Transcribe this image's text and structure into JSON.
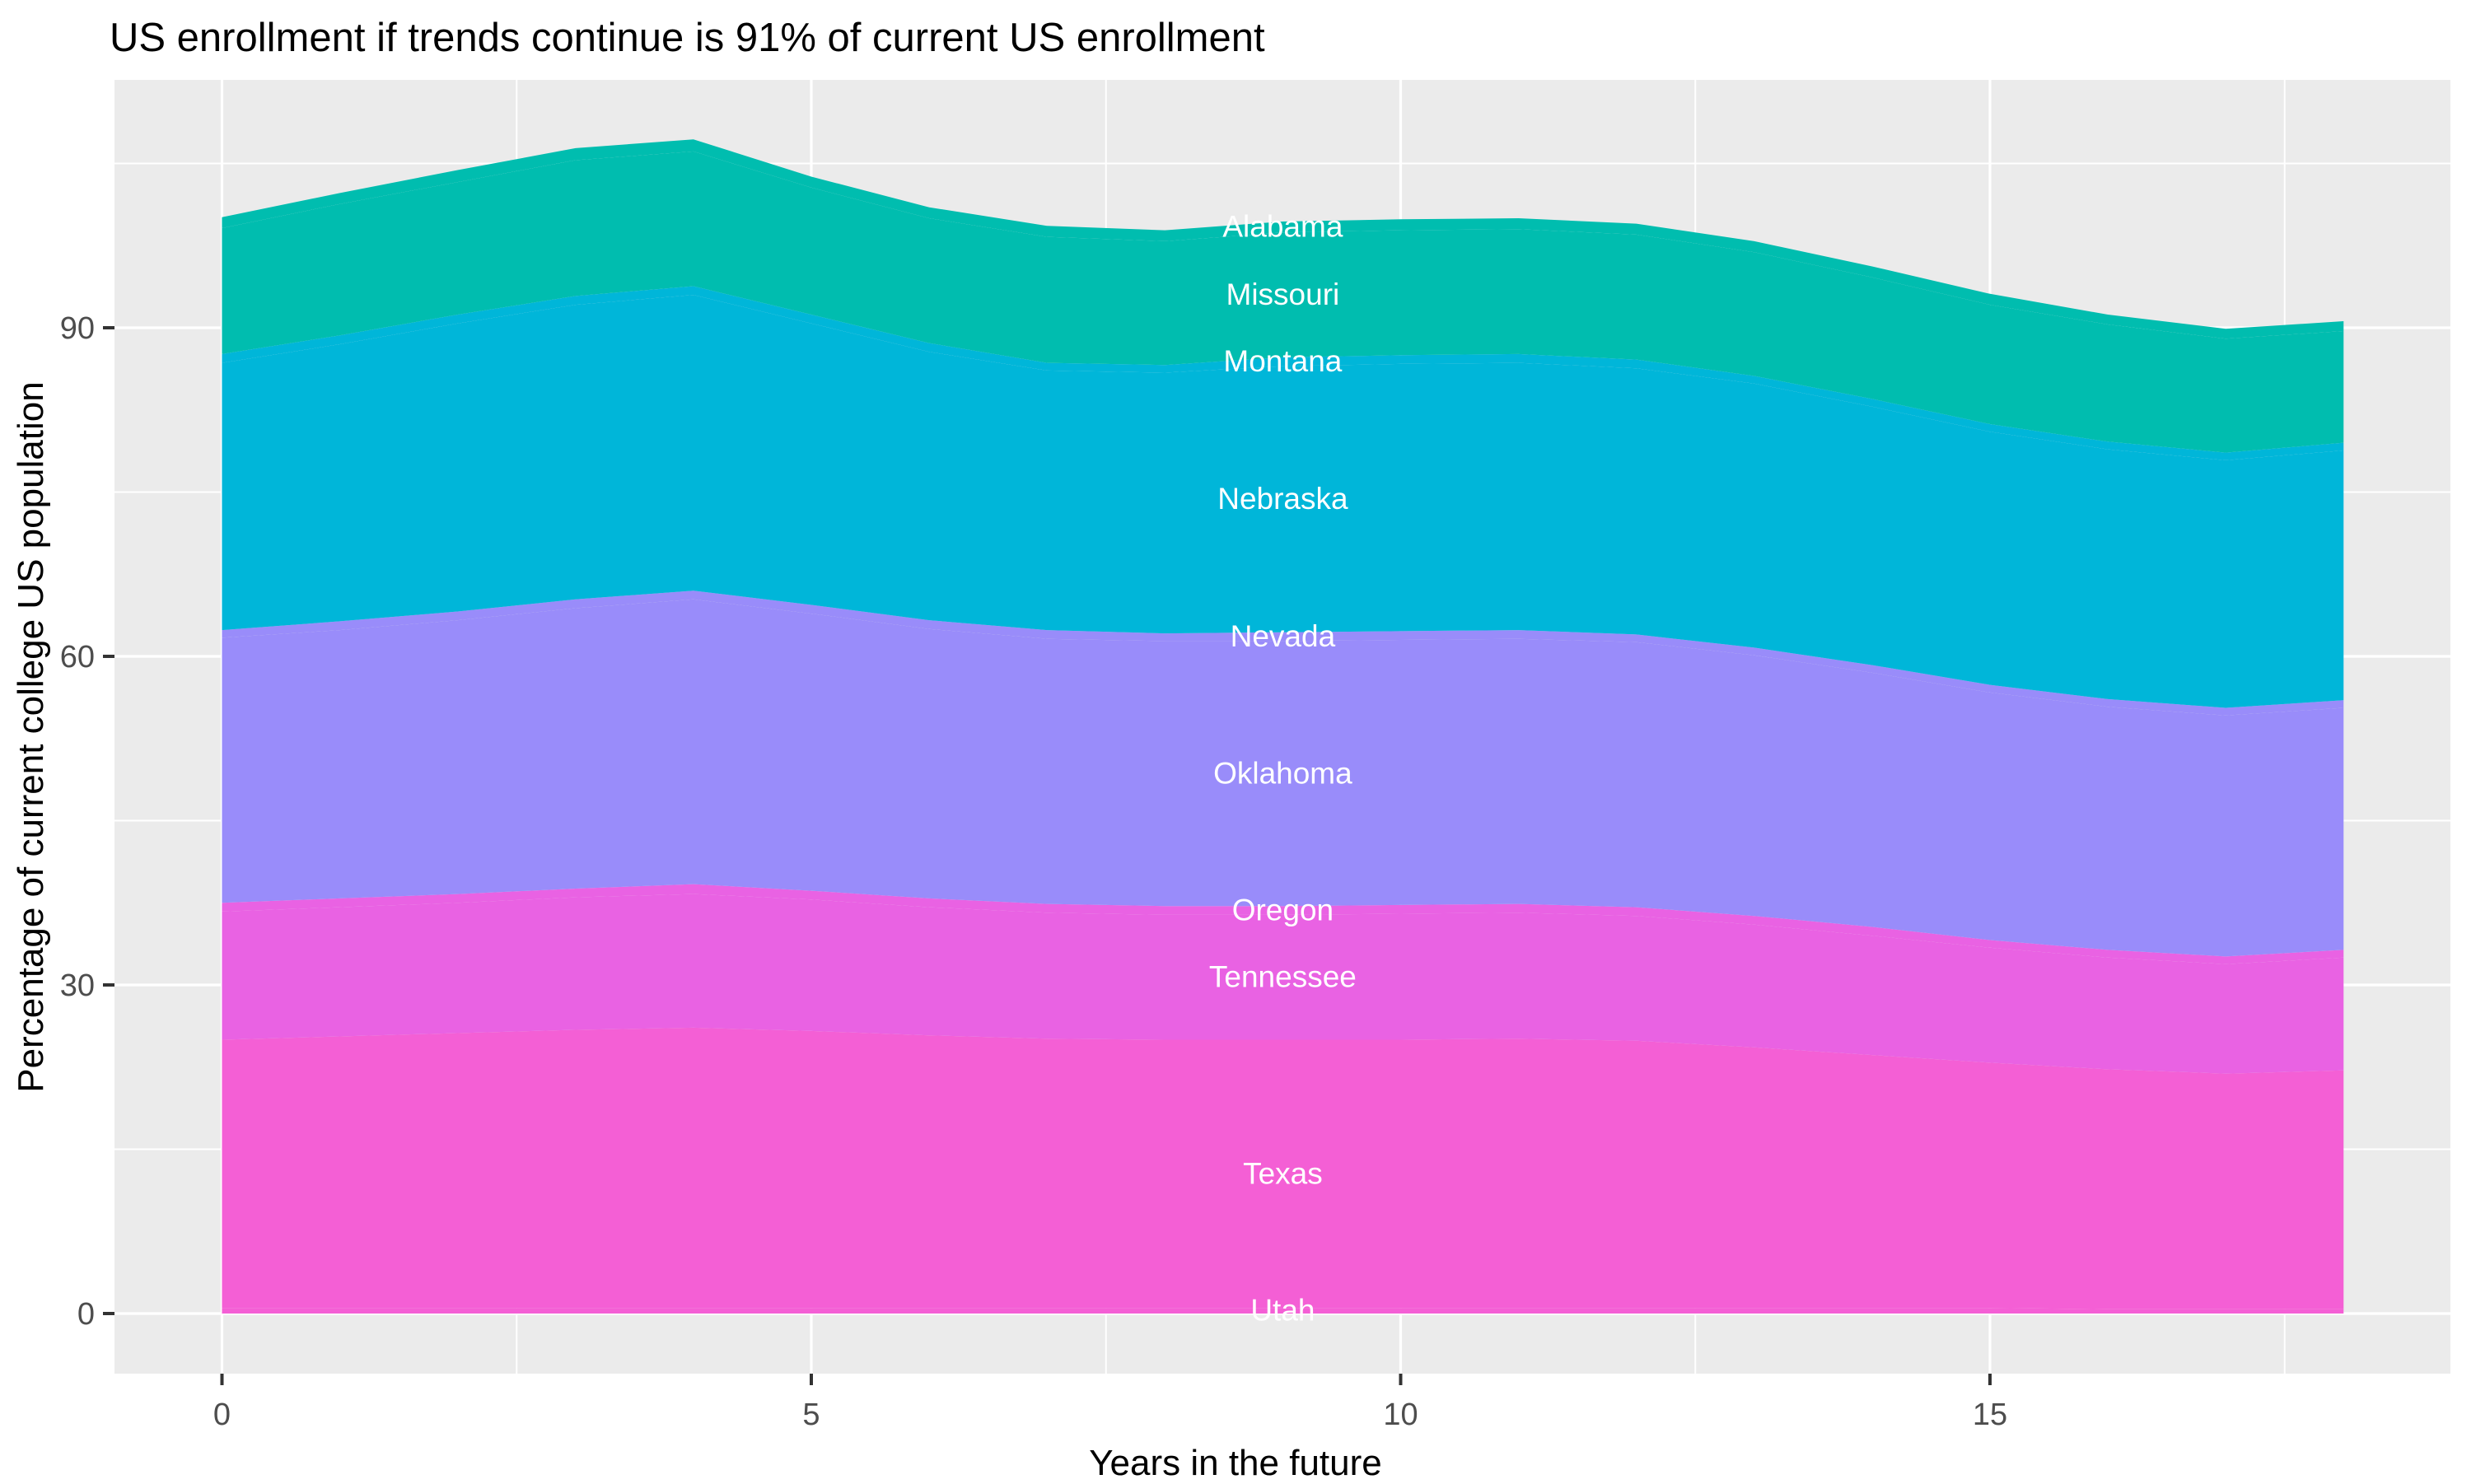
{
  "title": "US enrollment if trends continue is 91% of current US enrollment",
  "panel": {
    "background": "#EBEBEB",
    "grid_major_color": "#FFFFFF",
    "grid_minor_color": "#FFFFFF",
    "tick_color": "#333333",
    "tick_label_color": "#4D4D4D",
    "label_text_color": "#FFFFFF"
  },
  "chart_data": {
    "type": "area",
    "stacked": true,
    "title": "US enrollment if trends continue is 91% of current US enrollment",
    "xlabel": "Years in the future",
    "ylabel": "Percentage of current college US population",
    "x": [
      0,
      1,
      2,
      3,
      4,
      5,
      6,
      7,
      8,
      9,
      10,
      11,
      12,
      13,
      14,
      15,
      16,
      17,
      18
    ],
    "x_ticks": [
      0,
      5,
      10,
      15
    ],
    "x_minor_ticks": [
      2.5,
      7.5,
      12.5,
      17.5
    ],
    "y_ticks": [
      0,
      30,
      60,
      90
    ],
    "y_minor_ticks": [
      15,
      45,
      75,
      105
    ],
    "xlim": [
      -0.9,
      18.9
    ],
    "ylim": [
      -5.4,
      112.6
    ],
    "grid": true,
    "legend_position": "none",
    "label_x": 9,
    "series": [
      {
        "name": "Utah",
        "color": "#F45FD5",
        "values": [
          0.5,
          0.5,
          0.5,
          0.5,
          0.5,
          0.5,
          0.5,
          0.5,
          0.5,
          0.5,
          0.5,
          0.5,
          0.5,
          0.5,
          0.5,
          0.5,
          0.4,
          0.4,
          0.4
        ]
      },
      {
        "name": "Texas",
        "color": "#F45FD5",
        "values": [
          24.5,
          24.8,
          25.1,
          25.4,
          25.6,
          25.3,
          24.9,
          24.6,
          24.5,
          24.5,
          24.5,
          24.6,
          24.4,
          23.8,
          23.1,
          22.4,
          21.9,
          21.5,
          21.8
        ]
      },
      {
        "name": "Tennessee",
        "color": "#E962E3",
        "values": [
          11.7,
          11.8,
          11.9,
          12.1,
          12.2,
          12.0,
          11.7,
          11.5,
          11.4,
          11.4,
          11.5,
          11.5,
          11.4,
          11.2,
          10.9,
          10.5,
          10.2,
          10.0,
          10.3
        ]
      },
      {
        "name": "Oregon",
        "color": "#E962E3",
        "values": [
          0.8,
          0.8,
          0.8,
          0.8,
          0.9,
          0.8,
          0.8,
          0.8,
          0.8,
          0.8,
          0.8,
          0.8,
          0.8,
          0.8,
          0.8,
          0.7,
          0.7,
          0.7,
          0.7
        ]
      },
      {
        "name": "Oklahoma",
        "color": "#998CFA",
        "values": [
          24.2,
          24.5,
          25.0,
          25.6,
          26.0,
          25.3,
          24.6,
          24.2,
          24.2,
          24.2,
          24.2,
          24.2,
          24.2,
          23.8,
          23.2,
          22.6,
          22.2,
          22.0,
          22.1
        ]
      },
      {
        "name": "Nevada",
        "color": "#998CFA",
        "values": [
          0.7,
          0.8,
          0.8,
          0.8,
          0.8,
          0.8,
          0.8,
          0.8,
          0.7,
          0.8,
          0.8,
          0.8,
          0.7,
          0.7,
          0.7,
          0.7,
          0.7,
          0.7,
          0.7
        ]
      },
      {
        "name": "Nebraska",
        "color": "#00B6D9",
        "values": [
          24.4,
          25.3,
          26.3,
          26.9,
          27.0,
          25.7,
          24.5,
          23.7,
          23.8,
          24.3,
          24.4,
          24.4,
          24.3,
          24.1,
          23.6,
          23.1,
          22.8,
          22.6,
          22.8
        ]
      },
      {
        "name": "Montana",
        "color": "#00B6D9",
        "values": [
          0.8,
          0.8,
          0.8,
          0.8,
          0.8,
          0.8,
          0.8,
          0.7,
          0.7,
          0.8,
          0.8,
          0.8,
          0.8,
          0.7,
          0.7,
          0.7,
          0.7,
          0.7,
          0.7
        ]
      },
      {
        "name": "Missouri",
        "color": "#00BDAF",
        "values": [
          11.5,
          12.0,
          12.1,
          12.4,
          12.3,
          11.6,
          11.4,
          11.5,
          11.3,
          11.4,
          11.4,
          11.4,
          11.4,
          11.3,
          11.1,
          10.9,
          10.7,
          10.4,
          10.2
        ]
      },
      {
        "name": "Alabama",
        "color": "#00BDAF",
        "values": [
          1.0,
          1.0,
          1.1,
          1.1,
          1.1,
          1.0,
          1.0,
          1.0,
          1.0,
          1.0,
          1.0,
          1.0,
          1.0,
          1.0,
          1.0,
          1.0,
          0.9,
          0.9,
          0.9
        ]
      }
    ]
  }
}
